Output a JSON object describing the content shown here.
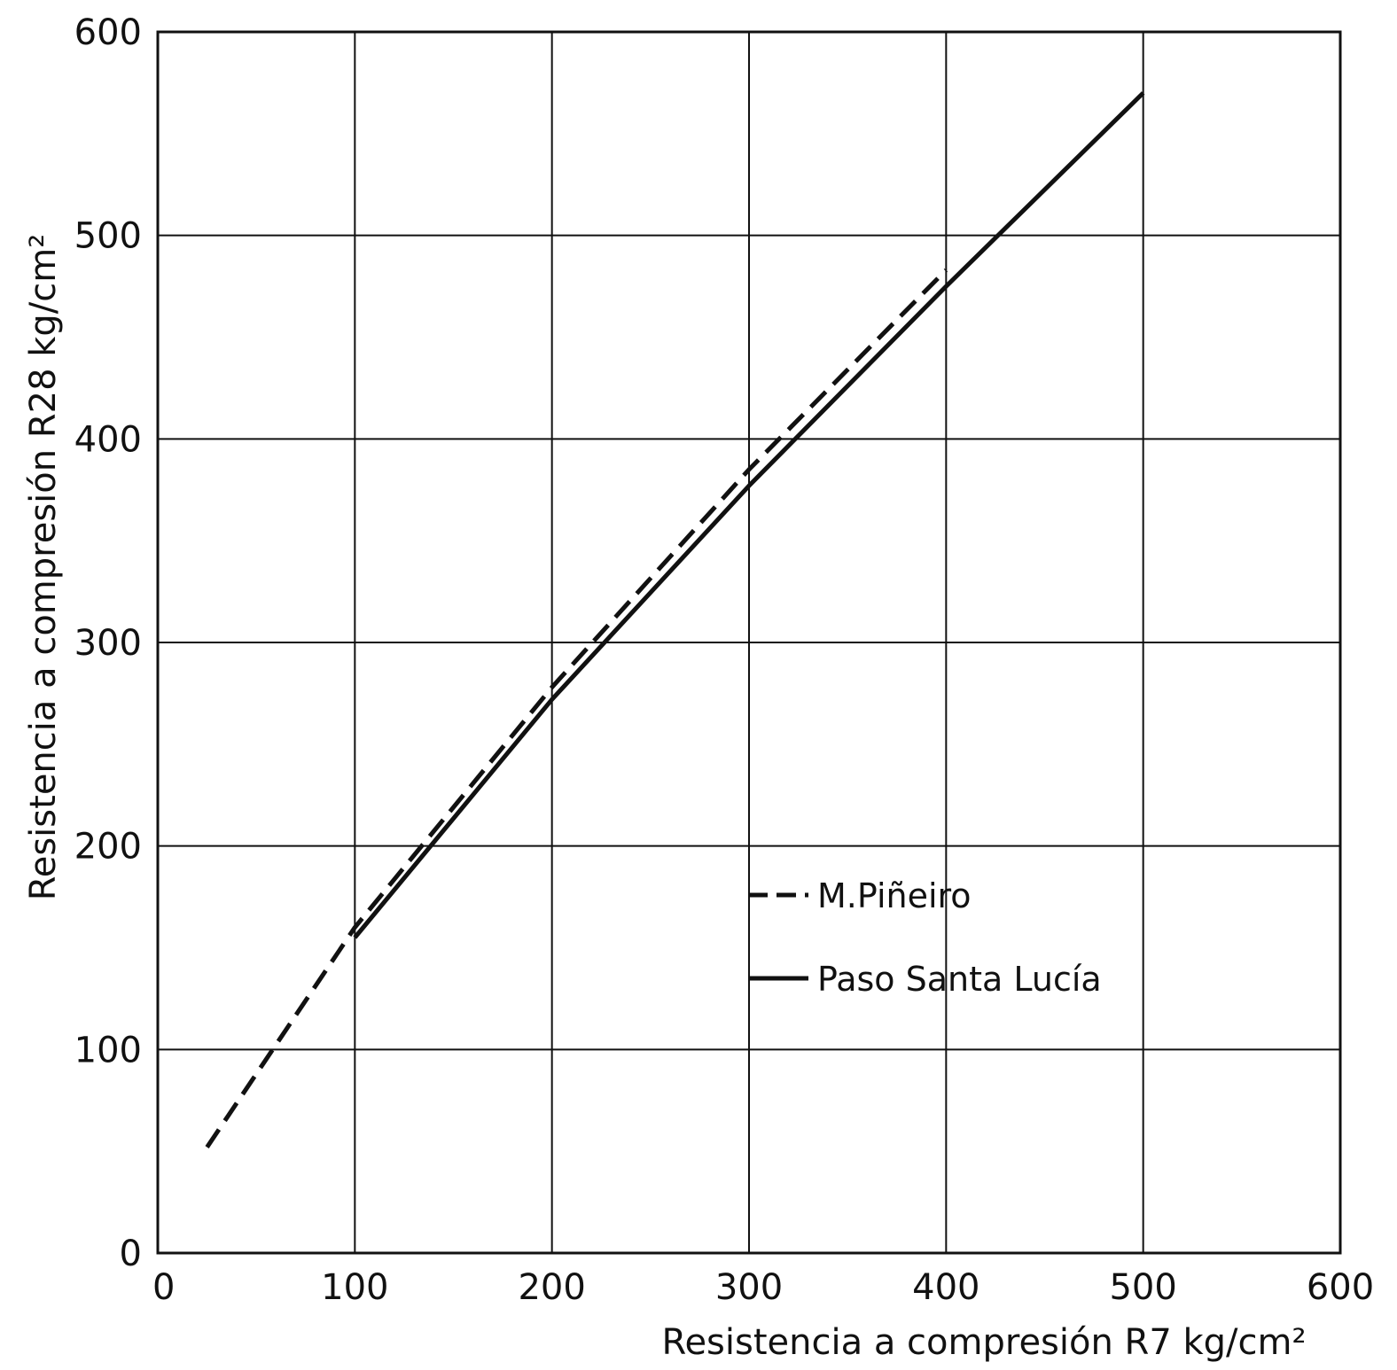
{
  "chart_data": {
    "type": "line",
    "title": "",
    "xlabel": "Resistencia a compresión R7 kg/cm²",
    "ylabel": "Resistencia a compresión R28 kg/cm²",
    "xlim": [
      0,
      600
    ],
    "ylim": [
      0,
      600
    ],
    "x_ticks": [
      "0",
      "100",
      "200",
      "300",
      "400",
      "500",
      "600"
    ],
    "y_ticks": [
      "0",
      "100",
      "200",
      "300",
      "400",
      "500",
      "600"
    ],
    "grid": true,
    "legend_position": "center-right",
    "series": [
      {
        "name": "M.Piñeiro",
        "style": "dashed",
        "color": "#111111",
        "points": [
          [
            25,
            52
          ],
          [
            100,
            160
          ],
          [
            200,
            278
          ],
          [
            300,
            385
          ],
          [
            400,
            483
          ]
        ]
      },
      {
        "name": "Paso Santa Lucía",
        "style": "solid",
        "color": "#111111",
        "points": [
          [
            100,
            155
          ],
          [
            200,
            272
          ],
          [
            300,
            377
          ],
          [
            400,
            475
          ],
          [
            500,
            570
          ]
        ]
      }
    ]
  }
}
